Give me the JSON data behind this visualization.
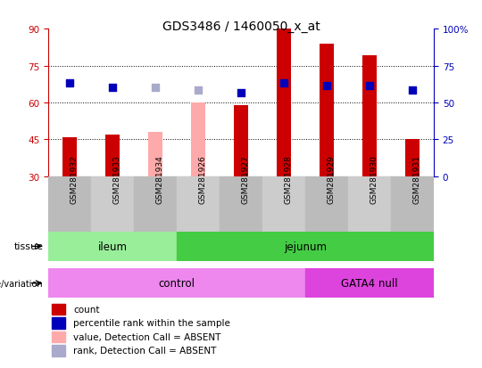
{
  "title": "GDS3486 / 1460050_x_at",
  "samples": [
    "GSM281932",
    "GSM281933",
    "GSM281934",
    "GSM281926",
    "GSM281927",
    "GSM281928",
    "GSM281929",
    "GSM281930",
    "GSM281931"
  ],
  "bar_values": [
    46,
    47,
    null,
    null,
    59,
    90,
    84,
    79,
    45
  ],
  "bar_absent": [
    null,
    null,
    48,
    60,
    null,
    null,
    null,
    null,
    null
  ],
  "bar_color_present": "#cc0000",
  "bar_color_absent": "#ffaaaa",
  "dot_values": [
    68,
    66,
    null,
    null,
    64,
    68,
    67,
    67,
    65
  ],
  "dot_absent": [
    null,
    null,
    66,
    65,
    null,
    null,
    null,
    null,
    null
  ],
  "dot_color_present": "#0000bb",
  "dot_color_absent": "#aaaacc",
  "ylim_left": [
    30,
    90
  ],
  "ylim_right": [
    0,
    100
  ],
  "yticks_left": [
    30,
    45,
    60,
    75,
    90
  ],
  "yticks_right": [
    0,
    25,
    50,
    75,
    100
  ],
  "ytick_labels_right": [
    "0",
    "25",
    "50",
    "75",
    "100%"
  ],
  "grid_values": [
    45,
    60,
    75
  ],
  "tissue_groups": [
    {
      "label": "ileum",
      "start": 0,
      "end": 3,
      "color": "#99ee99"
    },
    {
      "label": "jejunum",
      "start": 3,
      "end": 9,
      "color": "#44cc44"
    }
  ],
  "genotype_groups": [
    {
      "label": "control",
      "start": 0,
      "end": 6,
      "color": "#ee88ee"
    },
    {
      "label": "GATA4 null",
      "start": 6,
      "end": 9,
      "color": "#dd44dd"
    }
  ],
  "legend_items": [
    {
      "label": "count",
      "color": "#cc0000"
    },
    {
      "label": "percentile rank within the sample",
      "color": "#0000bb"
    },
    {
      "label": "value, Detection Call = ABSENT",
      "color": "#ffaaaa"
    },
    {
      "label": "rank, Detection Call = ABSENT",
      "color": "#aaaacc"
    }
  ],
  "left_axis_color": "#cc0000",
  "right_axis_color": "#0000bb",
  "bar_width": 0.35,
  "dot_size": 30,
  "xticklabel_bg": "#cccccc",
  "fig_width": 5.4,
  "fig_height": 4.14
}
